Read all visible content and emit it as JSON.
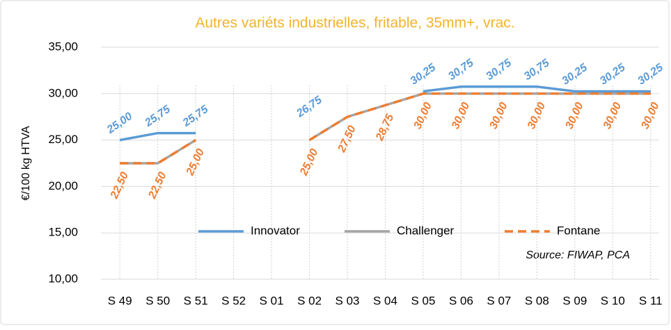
{
  "chart_data": {
    "type": "line",
    "title": "Autres variéts industrielles, fritable, 35mm+, vrac.",
    "y_label": "€/100 kg HTVA",
    "annotation": "Source: FIWAP, PCA",
    "categories": [
      "S 49",
      "S 50",
      "S 51",
      "S 52",
      "S 01",
      "S 02",
      "S 03",
      "S 04",
      "S 05",
      "S 06",
      "S 07",
      "S 08",
      "S 09",
      "S 10",
      "S 11"
    ],
    "series": [
      {
        "name": "Innovator",
        "color": "#5b9bd5",
        "values": [
          25.0,
          25.75,
          25.75,
          null,
          null,
          26.75,
          null,
          null,
          30.25,
          30.75,
          30.75,
          30.75,
          30.25,
          30.25,
          30.25
        ],
        "value_labels": [
          "25,00",
          "25,75",
          "25,75",
          null,
          null,
          "26,75",
          null,
          null,
          "30,25",
          "30,75",
          "30,75",
          "30,75",
          "30,25",
          "30,25",
          "30,25"
        ]
      },
      {
        "name": "Challenger",
        "color": "#a5a5a5",
        "values": [
          22.5,
          22.5,
          25.0,
          null,
          null,
          25.0,
          27.5,
          28.75,
          30.0,
          30.0,
          30.0,
          30.0,
          30.0,
          30.0,
          30.0
        ]
      },
      {
        "name": "Fontane",
        "color": "#ed7d31",
        "dashed": true,
        "values": [
          22.5,
          22.5,
          25.0,
          null,
          null,
          25.0,
          27.5,
          28.75,
          30.0,
          30.0,
          30.0,
          30.0,
          30.0,
          30.0,
          30.0
        ],
        "value_labels": [
          "22,50",
          "22,50",
          "25,00",
          null,
          null,
          "25,00",
          "27,50",
          "28,75",
          "30,00",
          "30,00",
          "30,00",
          "30,00",
          "30,00",
          "30,00",
          "30,00"
        ]
      }
    ],
    "ylim": [
      10,
      35
    ],
    "yticks": [
      {
        "value": 10,
        "label": "10,00"
      },
      {
        "value": 15,
        "label": "15,00"
      },
      {
        "value": 20,
        "label": "20,00"
      },
      {
        "value": 25,
        "label": "25,00"
      },
      {
        "value": 30,
        "label": "30,00"
      },
      {
        "value": 35,
        "label": "35,00"
      }
    ],
    "grid": true
  }
}
